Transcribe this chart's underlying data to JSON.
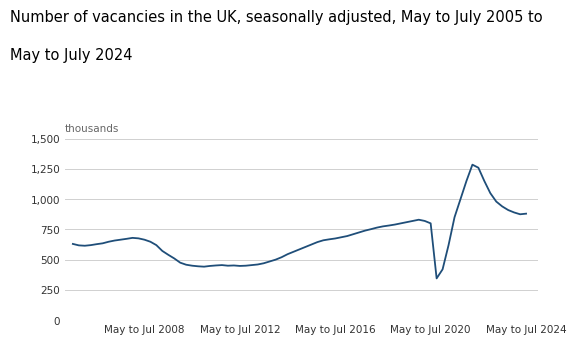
{
  "title_line1": "Number of vacancies in the UK, seasonally adjusted, May to July 2005 to",
  "title_line2": "May to July 2024",
  "ylabel": "thousands",
  "yticks": [
    0,
    250,
    500,
    750,
    1000,
    1250,
    1500
  ],
  "xtick_labels": [
    "May to Jul 2008",
    "May to Jul 2012",
    "May to Jul 2016",
    "May to Jul 2020",
    "May to Jul 2024"
  ],
  "line_color": "#1f4e79",
  "background_color": "#ffffff",
  "grid_color": "#d0d0d0",
  "title_fontsize": 10.5,
  "ylabel_fontsize": 7.5,
  "tick_fontsize": 7.5,
  "data": {
    "years": [
      2005.33,
      2005.58,
      2005.83,
      2006.08,
      2006.33,
      2006.58,
      2006.83,
      2007.08,
      2007.33,
      2007.58,
      2007.83,
      2008.08,
      2008.33,
      2008.58,
      2008.83,
      2009.08,
      2009.33,
      2009.58,
      2009.83,
      2010.08,
      2010.33,
      2010.58,
      2010.83,
      2011.08,
      2011.33,
      2011.58,
      2011.83,
      2012.08,
      2012.33,
      2012.58,
      2012.83,
      2013.08,
      2013.33,
      2013.58,
      2013.83,
      2014.08,
      2014.33,
      2014.58,
      2014.83,
      2015.08,
      2015.33,
      2015.58,
      2015.83,
      2016.08,
      2016.33,
      2016.58,
      2016.83,
      2017.08,
      2017.33,
      2017.58,
      2017.83,
      2018.08,
      2018.33,
      2018.58,
      2018.83,
      2019.08,
      2019.33,
      2019.58,
      2019.83,
      2020.08,
      2020.33,
      2020.58,
      2020.83,
      2021.08,
      2021.33,
      2021.58,
      2021.83,
      2022.08,
      2022.33,
      2022.58,
      2022.83,
      2023.08,
      2023.33,
      2023.58,
      2023.83,
      2024.08,
      2024.33
    ],
    "values": [
      630,
      618,
      615,
      620,
      628,
      635,
      648,
      658,
      665,
      672,
      680,
      676,
      665,
      648,
      620,
      572,
      540,
      510,
      475,
      458,
      450,
      445,
      442,
      448,
      452,
      455,
      450,
      452,
      448,
      450,
      455,
      460,
      470,
      485,
      500,
      520,
      545,
      565,
      585,
      605,
      625,
      645,
      660,
      668,
      675,
      685,
      695,
      710,
      725,
      740,
      752,
      765,
      775,
      782,
      790,
      800,
      810,
      820,
      830,
      820,
      800,
      345,
      420,
      620,
      850,
      1000,
      1150,
      1285,
      1260,
      1150,
      1050,
      980,
      940,
      910,
      890,
      875,
      880
    ]
  }
}
